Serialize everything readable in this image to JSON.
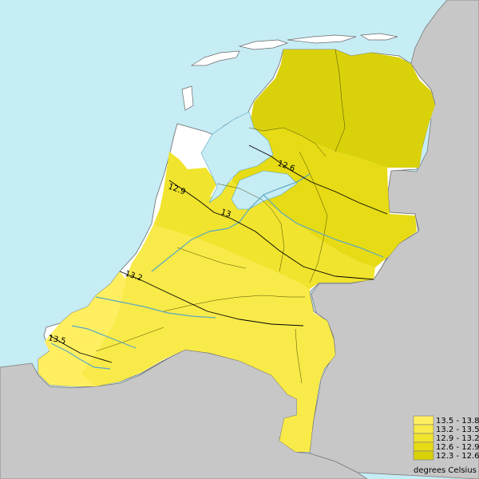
{
  "map": {
    "contour_labels": [
      "12.6",
      "12.9",
      "13.2",
      "13.5",
      "13"
    ],
    "legend": {
      "title": "degrees Celsius",
      "items": [
        {
          "label": "13.5 - 13.8",
          "color": "#ffef60"
        },
        {
          "label": "13.2 - 13.5",
          "color": "#f8ea48"
        },
        {
          "label": "12.9 - 13.2",
          "color": "#f0e42e"
        },
        {
          "label": "12.6 - 12.9",
          "color": "#e6db14"
        },
        {
          "label": "12.3 - 12.6",
          "color": "#d9d10a"
        }
      ]
    },
    "colors": {
      "sea": "#c6ecf4",
      "foreign_land": "#c7c7c7",
      "unclassified_land": "#ffffff",
      "boundary": "#000000"
    }
  }
}
